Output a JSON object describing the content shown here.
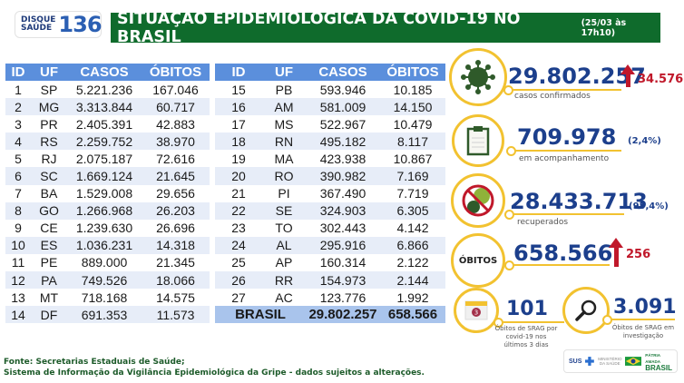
{
  "logo": {
    "line1": "DISQUE",
    "line2": "SAÚDE",
    "number": "136"
  },
  "title": {
    "main": "SITUAÇÃO EPIDEMIOLÓGICA DA COVID-19 NO BRASIL",
    "date": "(25/03 às 17h10)"
  },
  "table": {
    "headers": [
      "ID",
      "UF",
      "CASOS",
      "ÓBITOS"
    ],
    "left_rows": [
      [
        "1",
        "SP",
        "5.221.236",
        "167.046"
      ],
      [
        "2",
        "MG",
        "3.313.844",
        "60.717"
      ],
      [
        "3",
        "PR",
        "2.405.391",
        "42.883"
      ],
      [
        "4",
        "RS",
        "2.259.752",
        "38.970"
      ],
      [
        "5",
        "RJ",
        "2.075.187",
        "72.616"
      ],
      [
        "6",
        "SC",
        "1.669.124",
        "21.645"
      ],
      [
        "7",
        "BA",
        "1.529.008",
        "29.656"
      ],
      [
        "8",
        "GO",
        "1.266.968",
        "26.203"
      ],
      [
        "9",
        "CE",
        "1.239.630",
        "26.696"
      ],
      [
        "10",
        "ES",
        "1.036.231",
        "14.318"
      ],
      [
        "11",
        "PE",
        "889.000",
        "21.345"
      ],
      [
        "12",
        "PA",
        "749.526",
        "18.066"
      ],
      [
        "13",
        "MT",
        "718.168",
        "14.575"
      ],
      [
        "14",
        "DF",
        "691.353",
        "11.573"
      ]
    ],
    "right_rows": [
      [
        "15",
        "PB",
        "593.946",
        "10.185"
      ],
      [
        "16",
        "AM",
        "581.009",
        "14.150"
      ],
      [
        "17",
        "MS",
        "522.967",
        "10.479"
      ],
      [
        "18",
        "RN",
        "495.182",
        "8.117"
      ],
      [
        "19",
        "MA",
        "423.938",
        "10.867"
      ],
      [
        "20",
        "RO",
        "390.982",
        "7.169"
      ],
      [
        "21",
        "PI",
        "367.490",
        "7.719"
      ],
      [
        "22",
        "SE",
        "324.903",
        "6.305"
      ],
      [
        "23",
        "TO",
        "302.443",
        "4.142"
      ],
      [
        "24",
        "AL",
        "295.916",
        "6.866"
      ],
      [
        "25",
        "AP",
        "160.314",
        "2.122"
      ],
      [
        "26",
        "RR",
        "154.973",
        "2.144"
      ],
      [
        "27",
        "AC",
        "123.776",
        "1.992"
      ]
    ],
    "total": {
      "label": "BRASIL",
      "casos": "29.802.257",
      "obitos": "658.566"
    }
  },
  "stats": {
    "confirmed": {
      "value": "29.802.257",
      "label": "casos confirmados",
      "increase": "34.576",
      "icon": "virus-icon"
    },
    "monitoring": {
      "value": "709.978",
      "label": "em acompanhamento",
      "pct": "(2,4%)",
      "icon": "clipboard-icon"
    },
    "recovered": {
      "value": "28.433.713",
      "label": "recuperados",
      "pct": "(95,4%)",
      "icon": "no-virus-icon"
    },
    "deaths": {
      "badge": "ÓBITOS",
      "value": "658.566",
      "increase": "256"
    },
    "srag_recent": {
      "value": "101",
      "label": "Óbitos de SRAG por covid-19 nos últimos 3 dias",
      "calendar_num": "3",
      "icon": "calendar-icon"
    },
    "srag_investigation": {
      "value": "3.091",
      "label": "Óbitos de SRAG em investigação",
      "icon": "magnifier-icon"
    }
  },
  "footer": {
    "line1": "Fonte: Secretarias Estaduais de Saúde;",
    "line2": "Sistema de Informação da Vigilância Epidemiológica da Gripe - dados sujeitos a alterações."
  },
  "gov_logo": {
    "sus": "SUS",
    "ministry": "MINISTÉRIO DA SAÚDE",
    "slogan": "PÁTRIA AMADA",
    "country": "BRASIL"
  },
  "colors": {
    "title_green": "#0f6b2c",
    "header_blue": "#5b8fdc",
    "stripe": "#e7edf8",
    "total_row": "#a9c4ec",
    "number_blue": "#1c3f8c",
    "ring_yellow": "#f2c230",
    "increase_red": "#c0182a"
  }
}
